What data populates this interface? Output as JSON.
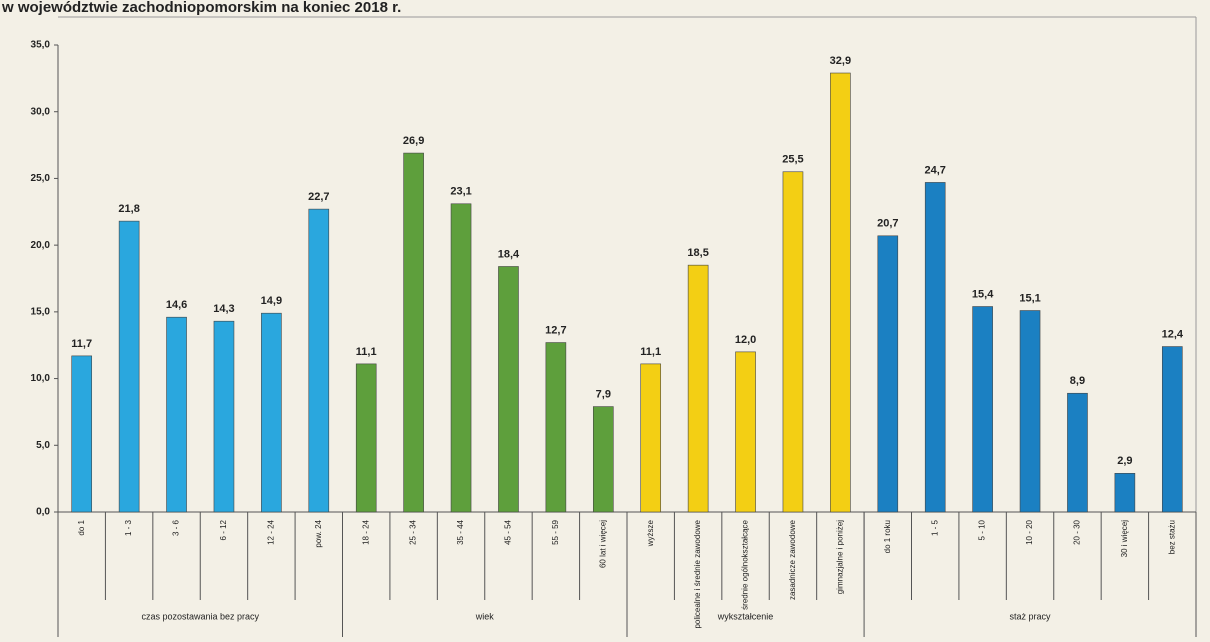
{
  "chart_data": {
    "type": "bar",
    "title": "w województwie zachodniopomorskim na koniec 2018 r.",
    "ylim": [
      0,
      35
    ],
    "yticks": [
      {
        "value": 0,
        "label": "0,0"
      },
      {
        "value": 5,
        "label": "5,0"
      },
      {
        "value": 10,
        "label": "10,0"
      },
      {
        "value": 15,
        "label": "15,0"
      },
      {
        "value": 20,
        "label": "20,0"
      },
      {
        "value": 25,
        "label": "25,0"
      },
      {
        "value": 30,
        "label": "30,0"
      },
      {
        "value": 35,
        "label": "35,0"
      }
    ],
    "groups": [
      {
        "name": "czas pozostawania bez pracy",
        "color": "#2aa7de",
        "categories": [
          "do 1",
          "1 - 3",
          "3 - 6",
          "6 - 12",
          "12 - 24",
          "pow. 24"
        ],
        "values": [
          11.7,
          21.8,
          14.6,
          14.3,
          14.9,
          22.7
        ],
        "value_labels": [
          "11,7",
          "21,8",
          "14,6",
          "14,3",
          "14,9",
          "22,7"
        ]
      },
      {
        "name": "wiek",
        "color": "#5e9f3c",
        "categories": [
          "18 - 24",
          "25 - 34",
          "35 - 44",
          "45 - 54",
          "55 - 59",
          "60 lat i więcej"
        ],
        "values": [
          11.1,
          26.9,
          23.1,
          18.4,
          12.7,
          7.9
        ],
        "value_labels": [
          "11,1",
          "26,9",
          "23,1",
          "18,4",
          "12,7",
          "7,9"
        ]
      },
      {
        "name": "wykształcenie",
        "color": "#f3cf14",
        "categories": [
          "wyższe",
          "policealne i średnie zawodowe",
          "średnie ogólnokształcące",
          "zasadnicze zawodowe",
          "gimnazjalne i poniżej"
        ],
        "values": [
          11.1,
          18.5,
          12.0,
          25.5,
          32.9
        ],
        "value_labels": [
          "11,1",
          "18,5",
          "12,0",
          "25,5",
          "32,9"
        ]
      },
      {
        "name": "staż pracy",
        "color": "#1b80c2",
        "categories": [
          "do 1 roku",
          "1 - 5",
          "5 - 10",
          "10 - 20",
          "20 - 30",
          "30 i więcej",
          "bez stażu"
        ],
        "values": [
          20.7,
          24.7,
          15.4,
          15.1,
          8.9,
          2.9,
          12.4
        ],
        "value_labels": [
          "20,7",
          "24,7",
          "15,4",
          "15,1",
          "8,9",
          "2,9",
          "12,4"
        ]
      }
    ]
  }
}
